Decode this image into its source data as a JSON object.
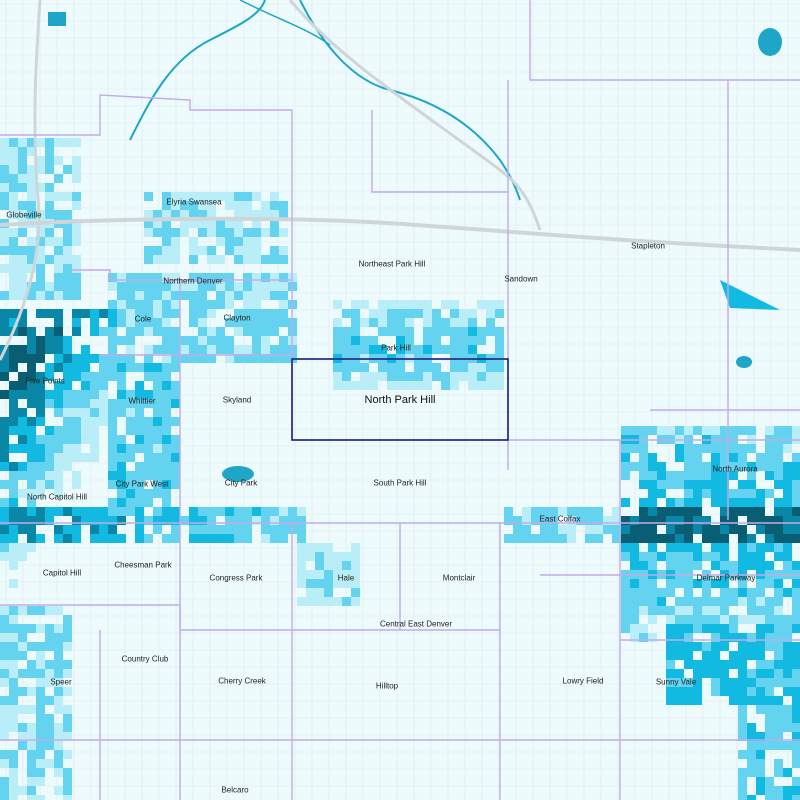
{
  "map": {
    "colors": {
      "background": "#eefbfd",
      "street": "#dde8ec",
      "highway": "#cfd6da",
      "boundary": "#c2abe8",
      "water": "#1fa6c6",
      "density_1": "#b9eef8",
      "density_2": "#63d3ef",
      "density_3": "#12b9e0",
      "density_4": "#0a86a6",
      "density_5": "#0a5e74",
      "selected_outline": "#1a237e"
    },
    "selected_neighborhood": "North Park Hill",
    "neighborhoods": {
      "globeville": "Globeville",
      "elyria_swansea": "Elyria Swansea",
      "stapleton": "Stapleton",
      "northeast_park_hill": "Northeast Park Hill",
      "sandown": "Sandown",
      "northern_denver": "Northern Denver",
      "cole": "Cole",
      "clayton": "Clayton",
      "park_hill": "Park Hill",
      "five_points": "Five Points",
      "whittier": "Whittier",
      "skyland": "Skyland",
      "north_park_hill": "North Park Hill",
      "north_aurora": "North Aurora",
      "city_park": "City Park",
      "north_capitol_hill": "North Capitol Hill",
      "city_park_west": "City Park West",
      "south_park_hill": "South Park Hill",
      "east_colfax": "East Colfax",
      "capitol_hill": "Capitol Hill",
      "cheesman_park": "Cheesman Park",
      "congress_park": "Congress Park",
      "hale": "Hale",
      "montclair": "Montclair",
      "delmar_parkway": "Delmar Parkway",
      "central_east_denver": "Central East Denver",
      "country_club": "Country Club",
      "speer": "Speer",
      "cherry_creek": "Cherry Creek",
      "hilltop": "Hilltop",
      "lowry_field": "Lowry Field",
      "sunny_vale": "Sunny Vale",
      "belcaro": "Belcaro"
    }
  }
}
